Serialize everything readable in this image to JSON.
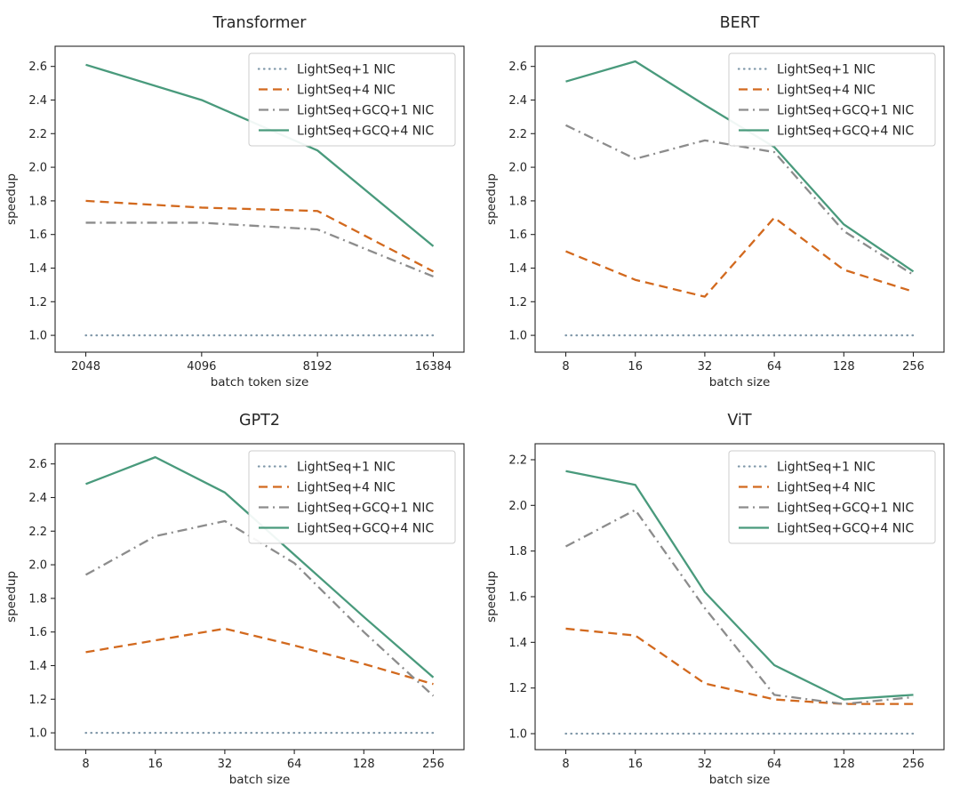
{
  "page": {
    "background": "#ffffff",
    "text_color": "#262626",
    "spine_color": "#262626",
    "legend_border_color": "#cccccc"
  },
  "chart_data": [
    {
      "type": "line",
      "title": "Transformer",
      "xlabel": "batch token size",
      "ylabel": "speedup",
      "categories": [
        "2048",
        "4096",
        "8192",
        "16384"
      ],
      "yticks": [
        "1.0",
        "1.2",
        "1.4",
        "1.6",
        "1.8",
        "2.0",
        "2.2",
        "2.4",
        "2.6"
      ],
      "ylim": [
        0.9,
        2.72
      ],
      "grid": false,
      "legend_position": "upper right",
      "series": [
        {
          "name": "LightSeq+1 NIC",
          "style": "dotted",
          "color": "#7f97a8",
          "values": [
            1.0,
            1.0,
            1.0,
            1.0
          ]
        },
        {
          "name": "LightSeq+4 NIC",
          "style": "dashed",
          "color": "#d2691e",
          "values": [
            1.8,
            1.76,
            1.74,
            1.38
          ]
        },
        {
          "name": "LightSeq+GCQ+1 NIC",
          "style": "dashdot",
          "color": "#8c8c8c",
          "values": [
            1.67,
            1.67,
            1.63,
            1.35
          ]
        },
        {
          "name": "LightSeq+GCQ+4 NIC",
          "style": "solid",
          "color": "#499a7c",
          "values": [
            2.61,
            2.4,
            2.1,
            1.53
          ]
        }
      ]
    },
    {
      "type": "line",
      "title": "BERT",
      "xlabel": "batch size",
      "ylabel": "speedup",
      "categories": [
        "8",
        "16",
        "32",
        "64",
        "128",
        "256"
      ],
      "yticks": [
        "1.0",
        "1.2",
        "1.4",
        "1.6",
        "1.8",
        "2.0",
        "2.2",
        "2.4",
        "2.6"
      ],
      "ylim": [
        0.9,
        2.72
      ],
      "grid": false,
      "legend_position": "upper right",
      "series": [
        {
          "name": "LightSeq+1 NIC",
          "style": "dotted",
          "color": "#7f97a8",
          "values": [
            1.0,
            1.0,
            1.0,
            1.0,
            1.0,
            1.0
          ]
        },
        {
          "name": "LightSeq+4 NIC",
          "style": "dashed",
          "color": "#d2691e",
          "values": [
            1.5,
            1.33,
            1.23,
            1.7,
            1.39,
            1.26
          ]
        },
        {
          "name": "LightSeq+GCQ+1 NIC",
          "style": "dashdot",
          "color": "#8c8c8c",
          "values": [
            2.25,
            2.05,
            2.16,
            2.09,
            1.62,
            1.36
          ]
        },
        {
          "name": "LightSeq+GCQ+4 NIC",
          "style": "solid",
          "color": "#499a7c",
          "values": [
            2.51,
            2.63,
            2.37,
            2.12,
            1.66,
            1.38
          ]
        }
      ]
    },
    {
      "type": "line",
      "title": "GPT2",
      "xlabel": "batch size",
      "ylabel": "speedup",
      "categories": [
        "8",
        "16",
        "32",
        "64",
        "128",
        "256"
      ],
      "yticks": [
        "1.0",
        "1.2",
        "1.4",
        "1.6",
        "1.8",
        "2.0",
        "2.2",
        "2.4",
        "2.6"
      ],
      "ylim": [
        0.9,
        2.72
      ],
      "grid": false,
      "legend_position": "upper right",
      "series": [
        {
          "name": "LightSeq+1 NIC",
          "style": "dotted",
          "color": "#7f97a8",
          "values": [
            1.0,
            1.0,
            1.0,
            1.0,
            1.0,
            1.0
          ]
        },
        {
          "name": "LightSeq+4 NIC",
          "style": "dashed",
          "color": "#d2691e",
          "values": [
            1.48,
            1.55,
            1.62,
            1.52,
            1.41,
            1.29
          ]
        },
        {
          "name": "LightSeq+GCQ+1 NIC",
          "style": "dashdot",
          "color": "#8c8c8c",
          "values": [
            1.94,
            2.17,
            2.26,
            2.01,
            1.6,
            1.22
          ]
        },
        {
          "name": "LightSeq+GCQ+4 NIC",
          "style": "solid",
          "color": "#499a7c",
          "values": [
            2.48,
            2.64,
            2.43,
            2.06,
            1.69,
            1.33
          ]
        }
      ]
    },
    {
      "type": "line",
      "title": "ViT",
      "xlabel": "batch size",
      "ylabel": "speedup",
      "categories": [
        "8",
        "16",
        "32",
        "64",
        "128",
        "256"
      ],
      "yticks": [
        "1.0",
        "1.2",
        "1.4",
        "1.6",
        "1.8",
        "2.0",
        "2.2"
      ],
      "ylim": [
        0.93,
        2.27
      ],
      "grid": false,
      "legend_position": "upper right",
      "series": [
        {
          "name": "LightSeq+1 NIC",
          "style": "dotted",
          "color": "#7f97a8",
          "values": [
            1.0,
            1.0,
            1.0,
            1.0,
            1.0,
            1.0
          ]
        },
        {
          "name": "LightSeq+4 NIC",
          "style": "dashed",
          "color": "#d2691e",
          "values": [
            1.46,
            1.43,
            1.22,
            1.15,
            1.13,
            1.13
          ]
        },
        {
          "name": "LightSeq+GCQ+1 NIC",
          "style": "dashdot",
          "color": "#8c8c8c",
          "values": [
            1.82,
            1.98,
            1.55,
            1.17,
            1.13,
            1.16
          ]
        },
        {
          "name": "LightSeq+GCQ+4 NIC",
          "style": "solid",
          "color": "#499a7c",
          "values": [
            2.15,
            2.09,
            1.62,
            1.3,
            1.15,
            1.17
          ]
        }
      ]
    }
  ]
}
